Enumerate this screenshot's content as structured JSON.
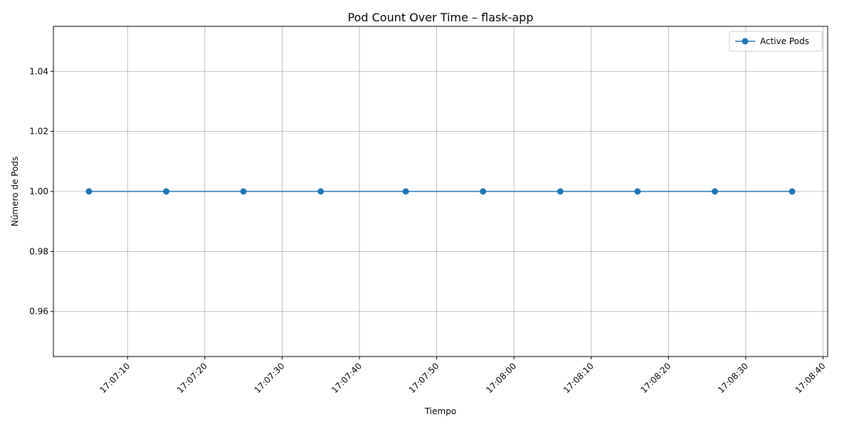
{
  "chart_data": {
    "type": "line",
    "title": "Pod Count Over Time – flask-app",
    "xlabel": "Tiempo",
    "ylabel": "Número de Pods",
    "ylim": [
      0.945,
      1.055
    ],
    "xlim": [
      "17:07:00.4",
      "17:08:40.6"
    ],
    "x_ticks": [
      "17:07:10",
      "17:07:20",
      "17:07:30",
      "17:07:40",
      "17:07:50",
      "17:08:00",
      "17:08:10",
      "17:08:20",
      "17:08:30",
      "17:08:40"
    ],
    "y_ticks": [
      "0.96",
      "0.98",
      "1.00",
      "1.02",
      "1.04"
    ],
    "grid": true,
    "legend_position": "upper right",
    "series": [
      {
        "name": "Active Pods",
        "color": "#1f77b4",
        "marker": "circle",
        "x": [
          "17:07:05",
          "17:07:15",
          "17:07:25",
          "17:07:35",
          "17:07:46",
          "17:07:56",
          "17:08:06",
          "17:08:16",
          "17:08:26",
          "17:08:36"
        ],
        "values": [
          1,
          1,
          1,
          1,
          1,
          1,
          1,
          1,
          1,
          1
        ]
      }
    ]
  }
}
